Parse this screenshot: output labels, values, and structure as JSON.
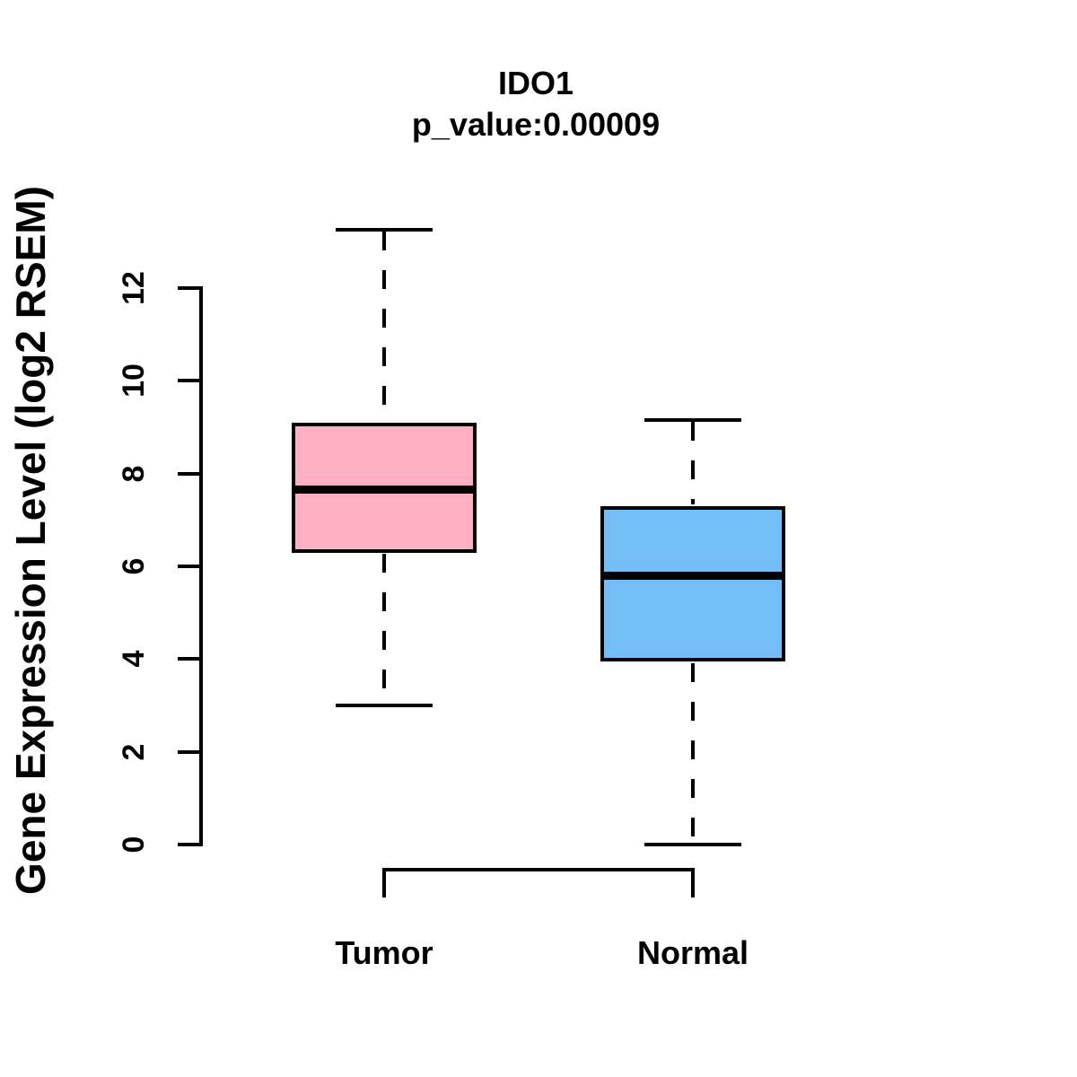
{
  "chart_data": {
    "type": "boxplot",
    "title": "IDO1",
    "subtitle": "p_value:0.00009",
    "ylabel": "Gene Expression Level (log2 RSEM)",
    "xlabel": "",
    "categories": [
      "Tumor",
      "Normal"
    ],
    "yticks": [
      0,
      2,
      4,
      6,
      8,
      10,
      12
    ],
    "ylim": [
      -0.5,
      13.8
    ],
    "grid": false,
    "legend": false,
    "colors": {
      "tumor_fill": "#FCB0C1",
      "normal_fill": "#73BEF7",
      "line": "#000000",
      "background": "#FFFFFF"
    },
    "series": [
      {
        "name": "Tumor",
        "color": "#FCB0C1",
        "whisker_low": 3.0,
        "q1": 6.3,
        "median": 7.65,
        "q3": 9.1,
        "whisker_high": 13.25
      },
      {
        "name": "Normal",
        "color": "#73BEF7",
        "whisker_low": 0.0,
        "q1": 3.95,
        "median": 5.8,
        "q3": 7.3,
        "whisker_high": 9.15
      }
    ]
  }
}
